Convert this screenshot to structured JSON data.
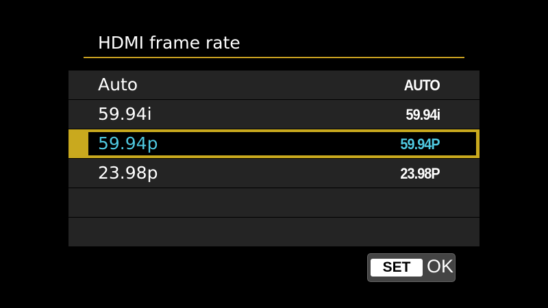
{
  "title": "HDMI frame rate",
  "colors": {
    "accent": "#c9a91e",
    "selected_text": "#4fc8e0"
  },
  "options": [
    {
      "label": "Auto",
      "value": "AUTO",
      "selected": false
    },
    {
      "label": "59.94i",
      "value": "59.94i",
      "selected": false
    },
    {
      "label": "59.94p",
      "value": "59.94P",
      "selected": true
    },
    {
      "label": "23.98p",
      "value": "23.98P",
      "selected": false
    }
  ],
  "footer": {
    "set_label": "SET",
    "ok_label": "OK"
  }
}
